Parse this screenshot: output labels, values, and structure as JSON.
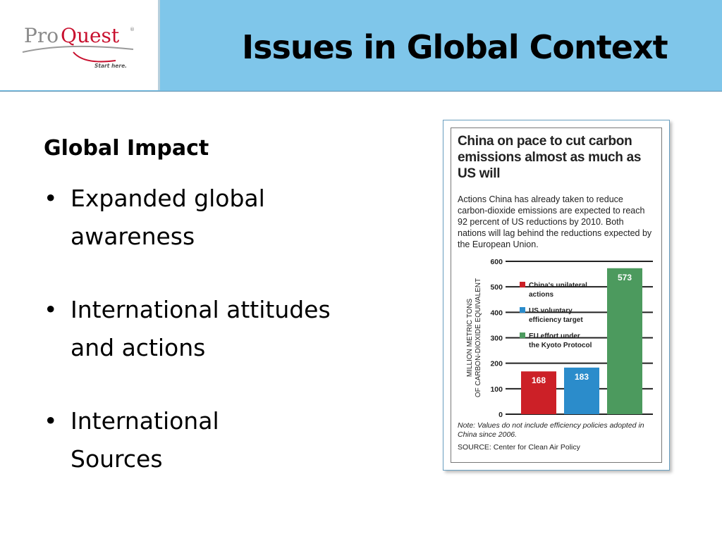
{
  "header": {
    "title": "Issues in Global Context",
    "logo": {
      "name": "ProQuest",
      "tagline": "Start here."
    }
  },
  "main": {
    "heading": "Global Impact",
    "bullets": [
      "Expanded global awareness",
      "International attitudes and actions",
      "International Sources"
    ]
  },
  "colors": {
    "header_bg": "#7fc6ea",
    "china": "#cc2027",
    "us": "#2b8ccb",
    "eu": "#4c9a5e"
  },
  "chart_data": {
    "type": "bar",
    "title": "China on pace to cut carbon emissions almost as much as US will",
    "subtitle": "Actions China has already taken to reduce carbon-dioxide emissions are expected to reach 92 percent of US reductions by 2010. Both nations will lag behind the reductions expected by the European Union.",
    "ylabel": "MILLION METRIC TONS OF CARBON-DIOXIDE EQUIVALENT",
    "ylim": [
      0,
      600
    ],
    "yticks": [
      0,
      100,
      200,
      300,
      400,
      500,
      600
    ],
    "categories": [
      "China's unilateral actions",
      "US voluntary efficiency target",
      "EU effort under the Kyoto Protocol"
    ],
    "values": [
      168,
      183,
      573
    ],
    "value_labels": [
      "168",
      "183",
      "573"
    ],
    "colors": [
      "#cc2027",
      "#2b8ccb",
      "#4c9a5e"
    ],
    "legend": [
      {
        "label_lines": [
          "China's unilateral",
          "actions"
        ],
        "color": "#cc2027"
      },
      {
        "label_lines": [
          "US voluntary",
          "efficiency target"
        ],
        "color": "#2b8ccb"
      },
      {
        "label_lines": [
          "EU effort under",
          "the Kyoto Protocol"
        ],
        "color": "#4c9a5e"
      }
    ],
    "legend_position": "top-left",
    "grid": true,
    "note": "Note: Values do not include efficiency policies adopted in China since 2006.",
    "source": "SOURCE: Center for Clean Air Policy"
  }
}
